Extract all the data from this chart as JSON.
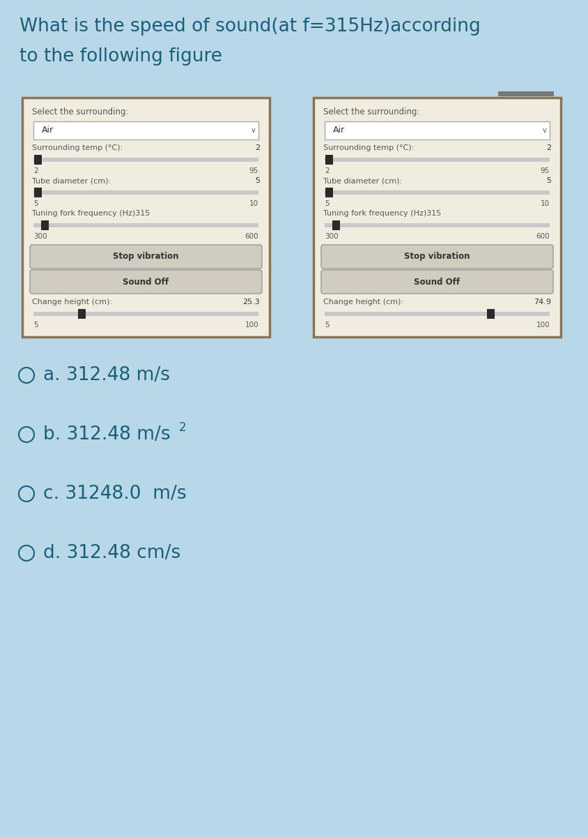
{
  "title_line1": "What is the speed of sound(at f=315Hz)according",
  "title_line2": "to the following figure",
  "title_color": "#1a5f7a",
  "bg_color": "#b8d8e8",
  "panel_bg": "#f0ece0",
  "panel_border_dark": "#8b7355",
  "select_label": "Select the surrounding:",
  "dropdown_text": "Air",
  "temp_label": "Surrounding temp (°C):",
  "temp_value": "2",
  "temp_min": "2",
  "temp_max": "95",
  "diam_label": "Tube diameter (cm):",
  "diam_value": "5",
  "diam_min": "5",
  "diam_max": "10",
  "freq_label": "Tuning fork frequency (Hz)",
  "freq_value": "315",
  "freq_min": "300",
  "freq_max": "600",
  "btn_stop": "Stop vibration",
  "btn_sound": "Sound Off",
  "height_label": "Change height (cm):",
  "height_value_left": "25.3",
  "height_value_right": "74.9",
  "height_min": "5",
  "height_max": "100",
  "label_color": "#555555",
  "text_color": "#333333",
  "slider_track": "#c8c8c8",
  "slider_thumb": "#2a2a2a",
  "btn_color": "#d0ccc0",
  "btn_border": "#999999",
  "dropdown_bg": "#ffffff",
  "option_color": "#1a5f7a",
  "header_bar_color": "#777777"
}
